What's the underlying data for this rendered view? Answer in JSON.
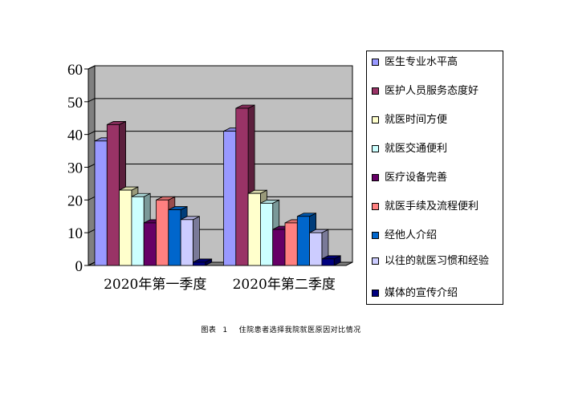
{
  "chart_data": {
    "type": "bar",
    "style": "3d-clustered",
    "categories": [
      "2020年第一季度",
      "2020年第二季度"
    ],
    "ylim": [
      0,
      60
    ],
    "yticks": [
      0,
      10,
      20,
      30,
      40,
      50,
      60
    ],
    "grid": true,
    "plot_background": "#c0c0c0",
    "legend_position": "right",
    "series": [
      {
        "name": "医生专业水平高",
        "color": "#9999ff",
        "values": [
          38,
          41
        ]
      },
      {
        "name": "医护人员服务态度好",
        "color": "#993366",
        "values": [
          43,
          48
        ]
      },
      {
        "name": "就医时间方便",
        "color": "#ffffcc",
        "values": [
          23,
          22
        ]
      },
      {
        "name": "就医交通便利",
        "color": "#ccffff",
        "values": [
          21,
          19
        ]
      },
      {
        "name": "医疗设备完善",
        "color": "#660066",
        "values": [
          13,
          11
        ]
      },
      {
        "name": "就医手续及流程便利",
        "color": "#ff8080",
        "values": [
          20,
          13
        ]
      },
      {
        "name": "经他人介绍",
        "color": "#0066cc",
        "values": [
          17,
          15
        ]
      },
      {
        "name": "以往的就医习惯和经验",
        "color": "#ccccff",
        "values": [
          14,
          10
        ]
      },
      {
        "name": "媒体的宣传介绍",
        "color": "#000080",
        "values": [
          1,
          2
        ]
      }
    ]
  },
  "caption": {
    "label": "图表",
    "number": "1",
    "text": "住院患者选择我院就医原因对比情况"
  }
}
